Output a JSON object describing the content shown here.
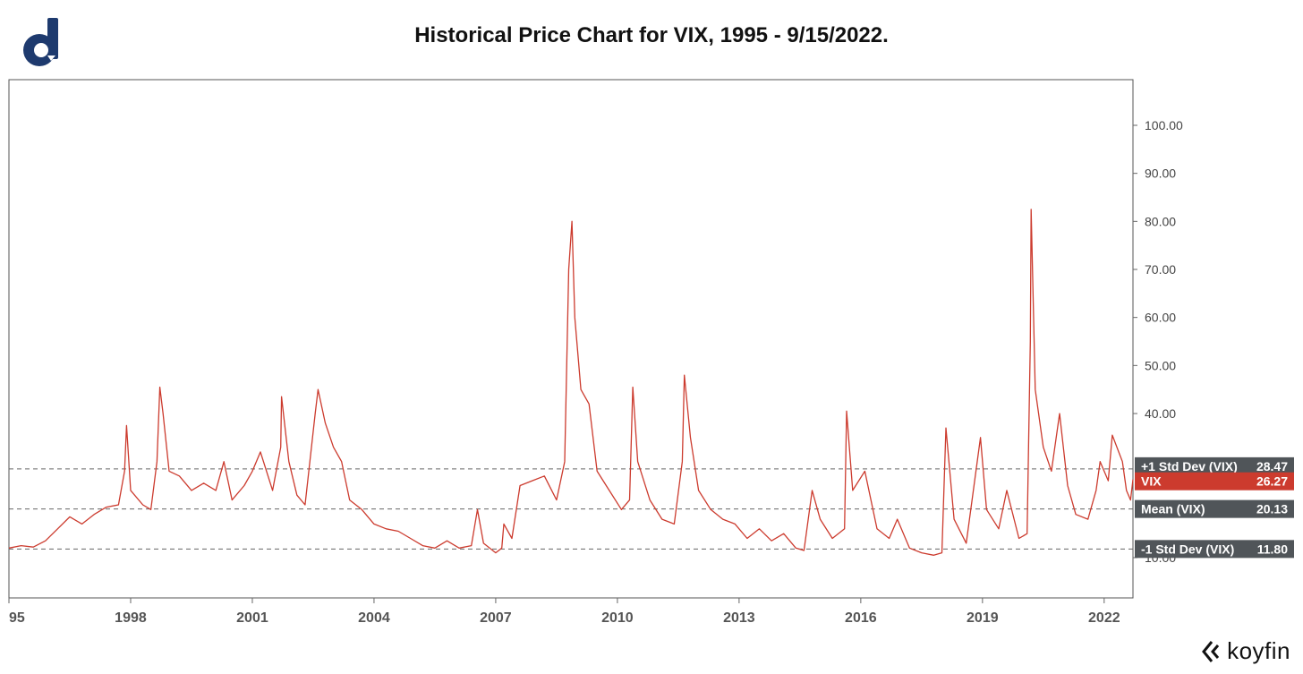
{
  "title": "Historical Price Chart for VIX, 1995 - 9/15/2022.",
  "brand": "koyfin",
  "colors": {
    "line": "#cc3b2e",
    "tag_gray": "#505559",
    "tag_red": "#cc3b2e",
    "logo": "#1e3a6e"
  },
  "chart_data": {
    "type": "line",
    "title": "Historical Price Chart for VIX, 1995 - 9/15/2022.",
    "x_range": [
      1995.0,
      2022.71
    ],
    "ylim": [
      0,
      110
    ],
    "y_ticks": [
      "100.00",
      "90.00",
      "80.00",
      "70.00",
      "60.00",
      "50.00",
      "40.00",
      "10.00"
    ],
    "y_tick_values": [
      100,
      90,
      80,
      70,
      60,
      50,
      40,
      10
    ],
    "x_ticks": [
      "95",
      "1998",
      "2001",
      "2004",
      "2007",
      "2010",
      "2013",
      "2016",
      "2019",
      "2022"
    ],
    "x_tick_values": [
      1995,
      1998,
      2001,
      2004,
      2007,
      2010,
      2013,
      2016,
      2019,
      2022
    ],
    "series": [
      {
        "name": "VIX",
        "points": [
          [
            1995.0,
            12.0
          ],
          [
            1995.3,
            12.5
          ],
          [
            1995.6,
            12.2
          ],
          [
            1995.9,
            13.5
          ],
          [
            1996.2,
            16.0
          ],
          [
            1996.5,
            18.5
          ],
          [
            1996.8,
            17.0
          ],
          [
            1997.1,
            19.0
          ],
          [
            1997.4,
            20.5
          ],
          [
            1997.7,
            21.0
          ],
          [
            1997.85,
            28.0
          ],
          [
            1997.9,
            37.5
          ],
          [
            1998.0,
            24.0
          ],
          [
            1998.3,
            21.0
          ],
          [
            1998.5,
            20.0
          ],
          [
            1998.65,
            30.0
          ],
          [
            1998.72,
            45.5
          ],
          [
            1998.8,
            40.0
          ],
          [
            1998.95,
            28.0
          ],
          [
            1999.2,
            27.0
          ],
          [
            1999.5,
            24.0
          ],
          [
            1999.8,
            25.5
          ],
          [
            2000.1,
            24.0
          ],
          [
            2000.3,
            30.0
          ],
          [
            2000.5,
            22.0
          ],
          [
            2000.8,
            25.0
          ],
          [
            2001.0,
            28.0
          ],
          [
            2001.2,
            32.0
          ],
          [
            2001.5,
            24.0
          ],
          [
            2001.7,
            33.0
          ],
          [
            2001.72,
            43.5
          ],
          [
            2001.9,
            30.0
          ],
          [
            2002.1,
            23.0
          ],
          [
            2002.3,
            21.0
          ],
          [
            2002.55,
            40.0
          ],
          [
            2002.62,
            45.0
          ],
          [
            2002.8,
            38.0
          ],
          [
            2003.0,
            33.0
          ],
          [
            2003.2,
            30.0
          ],
          [
            2003.4,
            22.0
          ],
          [
            2003.7,
            20.0
          ],
          [
            2004.0,
            17.0
          ],
          [
            2004.3,
            16.0
          ],
          [
            2004.6,
            15.5
          ],
          [
            2004.9,
            14.0
          ],
          [
            2005.2,
            12.5
          ],
          [
            2005.5,
            12.0
          ],
          [
            2005.8,
            13.5
          ],
          [
            2006.1,
            12.0
          ],
          [
            2006.4,
            12.5
          ],
          [
            2006.55,
            20.0
          ],
          [
            2006.7,
            13.0
          ],
          [
            2007.0,
            11.0
          ],
          [
            2007.15,
            12.0
          ],
          [
            2007.2,
            17.0
          ],
          [
            2007.4,
            14.0
          ],
          [
            2007.6,
            25.0
          ],
          [
            2007.9,
            26.0
          ],
          [
            2008.2,
            27.0
          ],
          [
            2008.5,
            22.0
          ],
          [
            2008.7,
            30.0
          ],
          [
            2008.8,
            70.0
          ],
          [
            2008.88,
            80.0
          ],
          [
            2008.95,
            60.0
          ],
          [
            2009.1,
            45.0
          ],
          [
            2009.3,
            42.0
          ],
          [
            2009.5,
            28.0
          ],
          [
            2009.8,
            24.0
          ],
          [
            2010.1,
            20.0
          ],
          [
            2010.3,
            22.0
          ],
          [
            2010.38,
            45.5
          ],
          [
            2010.5,
            30.0
          ],
          [
            2010.8,
            22.0
          ],
          [
            2011.1,
            18.0
          ],
          [
            2011.4,
            17.0
          ],
          [
            2011.6,
            30.0
          ],
          [
            2011.65,
            48.0
          ],
          [
            2011.8,
            35.0
          ],
          [
            2012.0,
            24.0
          ],
          [
            2012.3,
            20.0
          ],
          [
            2012.6,
            18.0
          ],
          [
            2012.9,
            17.0
          ],
          [
            2013.2,
            14.0
          ],
          [
            2013.5,
            16.0
          ],
          [
            2013.8,
            13.5
          ],
          [
            2014.1,
            15.0
          ],
          [
            2014.4,
            12.0
          ],
          [
            2014.6,
            11.5
          ],
          [
            2014.8,
            24.0
          ],
          [
            2015.0,
            18.0
          ],
          [
            2015.3,
            14.0
          ],
          [
            2015.6,
            16.0
          ],
          [
            2015.65,
            40.5
          ],
          [
            2015.8,
            24.0
          ],
          [
            2016.1,
            28.0
          ],
          [
            2016.4,
            16.0
          ],
          [
            2016.7,
            14.0
          ],
          [
            2016.9,
            18.0
          ],
          [
            2017.2,
            12.0
          ],
          [
            2017.5,
            11.0
          ],
          [
            2017.8,
            10.5
          ],
          [
            2018.0,
            11.0
          ],
          [
            2018.1,
            37.0
          ],
          [
            2018.3,
            18.0
          ],
          [
            2018.6,
            13.0
          ],
          [
            2018.95,
            35.0
          ],
          [
            2019.1,
            20.0
          ],
          [
            2019.4,
            16.0
          ],
          [
            2019.6,
            24.0
          ],
          [
            2019.9,
            14.0
          ],
          [
            2020.1,
            15.0
          ],
          [
            2020.18,
            55.0
          ],
          [
            2020.2,
            82.5
          ],
          [
            2020.3,
            45.0
          ],
          [
            2020.5,
            33.0
          ],
          [
            2020.7,
            28.0
          ],
          [
            2020.9,
            40.0
          ],
          [
            2021.1,
            25.0
          ],
          [
            2021.3,
            19.0
          ],
          [
            2021.6,
            18.0
          ],
          [
            2021.8,
            24.0
          ],
          [
            2021.9,
            30.0
          ],
          [
            2022.1,
            26.0
          ],
          [
            2022.2,
            35.5
          ],
          [
            2022.45,
            30.0
          ],
          [
            2022.55,
            24.0
          ],
          [
            2022.65,
            22.0
          ],
          [
            2022.71,
            26.27
          ]
        ]
      }
    ],
    "reference_lines": [
      {
        "name": "+1 Std Dev (VIX)",
        "value": 28.47,
        "label": "28.47"
      },
      {
        "name": "Mean (VIX)",
        "value": 20.13,
        "label": "20.13"
      },
      {
        "name": "-1 Std Dev (VIX)",
        "value": 11.8,
        "label": "11.80"
      }
    ],
    "last_value": {
      "name": "VIX",
      "value": 26.27,
      "label": "26.27"
    }
  }
}
